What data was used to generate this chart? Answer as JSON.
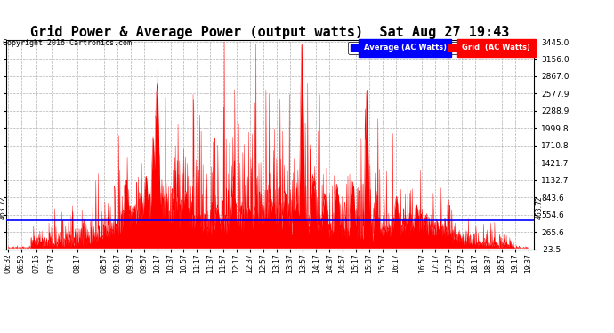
{
  "title": "Grid Power & Average Power (output watts)  Sat Aug 27 19:43",
  "copyright": "Copyright 2016 Cartronics.com",
  "legend_avg": "Average (AC Watts)",
  "legend_grid": "Grid  (AC Watts)",
  "yticks": [
    3445.0,
    3156.0,
    2867.0,
    2577.9,
    2288.9,
    1999.8,
    1710.8,
    1421.7,
    1132.7,
    843.6,
    554.6,
    265.6,
    -23.5
  ],
  "avg_line": 463.72,
  "ymin": -23.5,
  "ymax": 3445.0,
  "bg_color": "#ffffff",
  "plot_bg": "#ffffff",
  "fill_color": "#ff0000",
  "avg_line_color": "#0000ff",
  "grid_color": "#b0b0b0",
  "title_fontsize": 11,
  "xtick_labels": [
    "06:32",
    "06:52",
    "07:15",
    "07:37",
    "08:17",
    "08:57",
    "09:17",
    "09:37",
    "09:57",
    "10:17",
    "10:37",
    "10:57",
    "11:17",
    "11:37",
    "11:57",
    "12:17",
    "12:37",
    "12:57",
    "13:17",
    "13:37",
    "13:57",
    "14:17",
    "14:37",
    "14:57",
    "15:17",
    "15:37",
    "15:57",
    "16:17",
    "16:57",
    "17:17",
    "17:37",
    "17:57",
    "18:17",
    "18:37",
    "18:57",
    "19:17",
    "19:37"
  ]
}
